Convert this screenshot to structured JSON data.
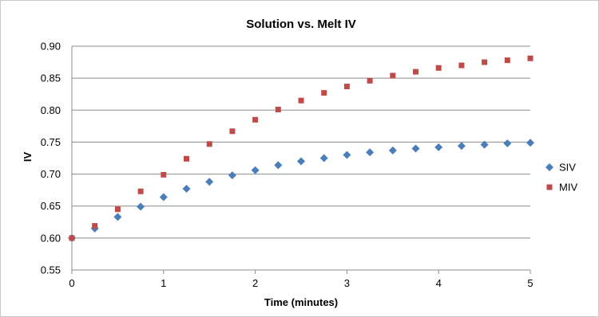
{
  "chart_data": {
    "type": "scatter",
    "title": "Solution vs. Melt IV",
    "xlabel": "Time (minutes)",
    "ylabel": "IV",
    "xlim": [
      0,
      5
    ],
    "ylim": [
      0.55,
      0.9
    ],
    "xticks": [
      "0",
      "1",
      "2",
      "3",
      "4",
      "5"
    ],
    "yticks": [
      "0.55",
      "0.60",
      "0.65",
      "0.70",
      "0.75",
      "0.80",
      "0.85",
      "0.90"
    ],
    "grid": "horizontal",
    "legend_position": "right",
    "x": [
      0,
      0.25,
      0.5,
      0.75,
      1,
      1.25,
      1.5,
      1.75,
      2,
      2.25,
      2.5,
      2.75,
      3,
      3.25,
      3.5,
      3.75,
      4,
      4.25,
      4.5,
      4.75,
      5
    ],
    "series": [
      {
        "name": "SIV",
        "marker": "diamond",
        "color": "#4a7ebb",
        "values": [
          0.6,
          0.615,
          0.633,
          0.649,
          0.664,
          0.677,
          0.688,
          0.698,
          0.706,
          0.714,
          0.72,
          0.725,
          0.73,
          0.734,
          0.737,
          0.74,
          0.742,
          0.744,
          0.746,
          0.748,
          0.749
        ]
      },
      {
        "name": "MIV",
        "marker": "square",
        "color": "#be4b48",
        "values": [
          0.6,
          0.619,
          0.645,
          0.673,
          0.699,
          0.724,
          0.747,
          0.767,
          0.785,
          0.801,
          0.815,
          0.827,
          0.837,
          0.846,
          0.854,
          0.86,
          0.866,
          0.87,
          0.875,
          0.878,
          0.881
        ]
      }
    ]
  }
}
